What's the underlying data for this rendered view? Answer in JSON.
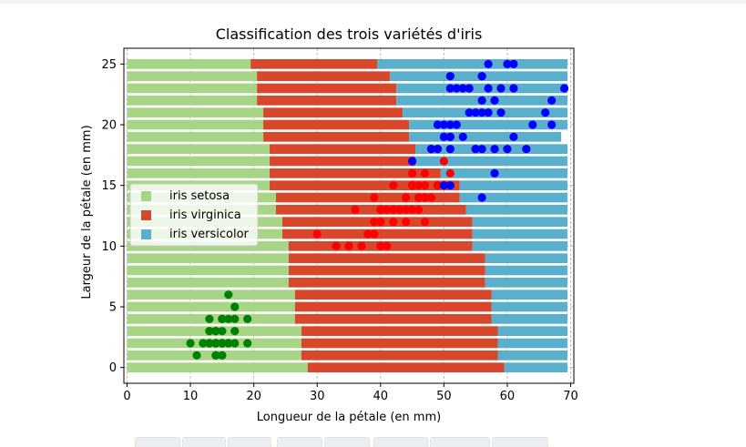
{
  "colors": {
    "setosa": "#a6d585",
    "virginica": "#d7472b",
    "versicolor": "#5aafcc",
    "setosa_points": "#008000",
    "virginica_points": "#ff0000",
    "versicolor_points": "#0000ff",
    "grid": "#b0b0b0"
  },
  "chart_data": {
    "type": "bar",
    "orientation": "horizontal",
    "stacked": true,
    "title": "Classification des trois variétés d'iris",
    "xlabel": "Longueur de la pétale (en mm)",
    "ylabel": "Largeur de la pétale (en mm)",
    "xlim": [
      -0.5,
      70.5
    ],
    "ylim": [
      -1.3,
      26.3
    ],
    "xticks": [
      0,
      10,
      20,
      30,
      40,
      50,
      60,
      70
    ],
    "yticks": [
      0,
      5,
      10,
      15,
      20,
      25
    ],
    "grid": true,
    "legend": {
      "placement": "center-left",
      "entries": [
        "iris setosa",
        "iris virginica",
        "iris versicolor"
      ]
    },
    "categories": [
      0,
      1,
      2,
      3,
      4,
      5,
      6,
      7,
      8,
      9,
      10,
      11,
      12,
      13,
      14,
      15,
      16,
      17,
      18,
      19,
      20,
      21,
      22,
      23,
      24,
      25
    ],
    "series": [
      {
        "name": "iris setosa",
        "values": [
          28.5,
          27.5,
          27.5,
          27.5,
          26.5,
          26.5,
          26.5,
          25.5,
          25.5,
          25.5,
          25.5,
          24.5,
          24.5,
          23.5,
          23.5,
          22.5,
          22.5,
          22.5,
          22.5,
          21.5,
          21.5,
          21.5,
          20.5,
          20.5,
          20.5,
          19.5
        ]
      },
      {
        "name": "iris virginica",
        "values": [
          31,
          31,
          31,
          31,
          31,
          31,
          31,
          31,
          31,
          31,
          29,
          30,
          30,
          30,
          29,
          30,
          27,
          23,
          23,
          23,
          23,
          22,
          22,
          22,
          21,
          20
        ]
      },
      {
        "name": "iris versicolor",
        "values": [
          10,
          11,
          11,
          11,
          12,
          12,
          12,
          13,
          13,
          13,
          15,
          15,
          15,
          16,
          17,
          17,
          20,
          24,
          24,
          24,
          25,
          26,
          27,
          27,
          28,
          30
        ]
      }
    ],
    "scatter": [
      {
        "name": "setosa",
        "points": [
          [
            14,
            2
          ],
          [
            15,
            2
          ],
          [
            13,
            2
          ],
          [
            15,
            2
          ],
          [
            14,
            2
          ],
          [
            17,
            4
          ],
          [
            14,
            3
          ],
          [
            15,
            2
          ],
          [
            14,
            2
          ],
          [
            15,
            1
          ],
          [
            15,
            2
          ],
          [
            16,
            2
          ],
          [
            14,
            1
          ],
          [
            11,
            1
          ],
          [
            12,
            2
          ],
          [
            15,
            4
          ],
          [
            13,
            4
          ],
          [
            14,
            3
          ],
          [
            17,
            3
          ],
          [
            15,
            3
          ],
          [
            17,
            2
          ],
          [
            15,
            4
          ],
          [
            10,
            2
          ],
          [
            17,
            5
          ],
          [
            19,
            2
          ],
          [
            16,
            2
          ],
          [
            16,
            4
          ],
          [
            15,
            2
          ],
          [
            14,
            2
          ],
          [
            16,
            2
          ],
          [
            16,
            2
          ],
          [
            15,
            4
          ],
          [
            15,
            1
          ],
          [
            14,
            2
          ],
          [
            15,
            2
          ],
          [
            12,
            2
          ],
          [
            13,
            2
          ],
          [
            14,
            1
          ],
          [
            13,
            2
          ],
          [
            15,
            2
          ],
          [
            13,
            3
          ],
          [
            13,
            3
          ],
          [
            13,
            2
          ],
          [
            16,
            6
          ],
          [
            19,
            4
          ],
          [
            14,
            3
          ],
          [
            16,
            2
          ],
          [
            14,
            2
          ],
          [
            15,
            2
          ],
          [
            14,
            2
          ]
        ]
      },
      {
        "name": "virginica",
        "points": [
          [
            47,
            14
          ],
          [
            45,
            15
          ],
          [
            49,
            15
          ],
          [
            40,
            13
          ],
          [
            46,
            15
          ],
          [
            45,
            13
          ],
          [
            47,
            16
          ],
          [
            33,
            10
          ],
          [
            46,
            13
          ],
          [
            39,
            14
          ],
          [
            35,
            10
          ],
          [
            42,
            15
          ],
          [
            40,
            10
          ],
          [
            47,
            14
          ],
          [
            36,
            13
          ],
          [
            44,
            14
          ],
          [
            45,
            15
          ],
          [
            41,
            10
          ],
          [
            45,
            15
          ],
          [
            39,
            11
          ],
          [
            48,
            18
          ],
          [
            40,
            13
          ],
          [
            49,
            15
          ],
          [
            47,
            12
          ],
          [
            43,
            13
          ],
          [
            44,
            14
          ],
          [
            48,
            14
          ],
          [
            50,
            17
          ],
          [
            45,
            15
          ],
          [
            35,
            10
          ],
          [
            38,
            11
          ],
          [
            37,
            10
          ],
          [
            39,
            12
          ],
          [
            51,
            16
          ],
          [
            45,
            15
          ],
          [
            45,
            16
          ],
          [
            47,
            15
          ],
          [
            44,
            13
          ],
          [
            41,
            13
          ],
          [
            40,
            13
          ],
          [
            44,
            12
          ],
          [
            46,
            14
          ],
          [
            40,
            12
          ],
          [
            33,
            10
          ],
          [
            42,
            13
          ],
          [
            42,
            12
          ],
          [
            42,
            13
          ],
          [
            43,
            13
          ],
          [
            30,
            11
          ],
          [
            41,
            13
          ]
        ]
      },
      {
        "name": "versicolor",
        "points": [
          [
            60,
            25
          ],
          [
            51,
            19
          ],
          [
            59,
            21
          ],
          [
            56,
            18
          ],
          [
            58,
            22
          ],
          [
            66,
            21
          ],
          [
            45,
            17
          ],
          [
            63,
            18
          ],
          [
            58,
            18
          ],
          [
            61,
            25
          ],
          [
            51,
            20
          ],
          [
            53,
            19
          ],
          [
            55,
            21
          ],
          [
            50,
            20
          ],
          [
            51,
            24
          ],
          [
            53,
            23
          ],
          [
            55,
            18
          ],
          [
            67,
            22
          ],
          [
            69,
            23
          ],
          [
            50,
            15
          ],
          [
            57,
            23
          ],
          [
            49,
            20
          ],
          [
            67,
            20
          ],
          [
            49,
            18
          ],
          [
            57,
            21
          ],
          [
            60,
            18
          ],
          [
            48,
            18
          ],
          [
            49,
            18
          ],
          [
            56,
            21
          ],
          [
            58,
            16
          ],
          [
            61,
            19
          ],
          [
            64,
            20
          ],
          [
            56,
            22
          ],
          [
            51,
            15
          ],
          [
            56,
            14
          ],
          [
            61,
            23
          ],
          [
            56,
            24
          ],
          [
            55,
            18
          ],
          [
            48,
            18
          ],
          [
            54,
            21
          ],
          [
            56,
            24
          ],
          [
            51,
            23
          ],
          [
            51,
            19
          ],
          [
            59,
            23
          ],
          [
            57,
            25
          ],
          [
            52,
            23
          ],
          [
            50,
            19
          ],
          [
            52,
            20
          ],
          [
            54,
            23
          ],
          [
            51,
            18
          ]
        ]
      }
    ]
  }
}
